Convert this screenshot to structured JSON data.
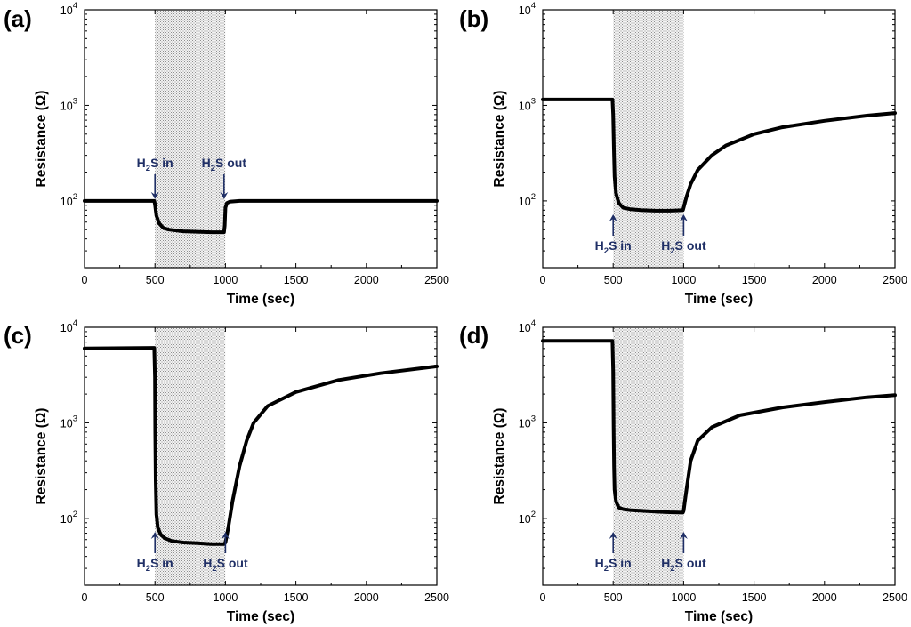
{
  "chart_data": [
    {
      "type": "line",
      "panel": "(a)",
      "xlabel": "Time (sec)",
      "ylabel": "Resistance (Ω)",
      "yscale": "log",
      "xlim": [
        0,
        2500
      ],
      "ylim": [
        20,
        10000
      ],
      "xticks": [
        "0",
        "500",
        "1000",
        "1500",
        "2000",
        "2500"
      ],
      "yticks": [
        {
          "base": "10",
          "exp": "2",
          "value": 100
        },
        {
          "base": "10",
          "exp": "3",
          "value": 1000
        },
        {
          "base": "10",
          "exp": "4",
          "value": 10000
        }
      ],
      "shaded_interval": [
        500,
        1000
      ],
      "annotations": [
        {
          "sub": "2",
          "pre": "H",
          "post": "S in",
          "x": 500,
          "direction": "down"
        },
        {
          "sub": "2",
          "pre": "H",
          "post": "S out",
          "x": 990,
          "direction": "down"
        }
      ],
      "series": [
        {
          "name": "resistance",
          "x": [
            0,
            495,
            500,
            510,
            530,
            560,
            600,
            700,
            800,
            900,
            990,
            995,
            1000,
            1010,
            1030,
            1060,
            1100,
            1300,
            1600,
            2000,
            2500
          ],
          "y": [
            100,
            100,
            92,
            70,
            58,
            52,
            50,
            48,
            47.5,
            47,
            47,
            55,
            85,
            95,
            98,
            99,
            100,
            100,
            100,
            100,
            100
          ]
        }
      ]
    },
    {
      "type": "line",
      "panel": "(b)",
      "xlabel": "Time (sec)",
      "ylabel": "Resistance (Ω)",
      "yscale": "log",
      "xlim": [
        0,
        2500
      ],
      "ylim": [
        20,
        10000
      ],
      "xticks": [
        "0",
        "500",
        "1000",
        "1500",
        "2000",
        "2500"
      ],
      "yticks": [
        {
          "base": "10",
          "exp": "2",
          "value": 100
        },
        {
          "base": "10",
          "exp": "3",
          "value": 1000
        },
        {
          "base": "10",
          "exp": "4",
          "value": 10000
        }
      ],
      "shaded_interval": [
        500,
        1000
      ],
      "annotations": [
        {
          "sub": "2",
          "pre": "H",
          "post": "S in",
          "x": 500,
          "direction": "up"
        },
        {
          "sub": "2",
          "pre": "H",
          "post": "S out",
          "x": 1000,
          "direction": "up"
        }
      ],
      "series": [
        {
          "name": "resistance",
          "x": [
            0,
            495,
            500,
            505,
            510,
            520,
            540,
            570,
            620,
            700,
            800,
            900,
            995,
            1000,
            1020,
            1050,
            1100,
            1200,
            1300,
            1500,
            1700,
            2000,
            2300,
            2500
          ],
          "y": [
            1150,
            1150,
            800,
            350,
            180,
            120,
            95,
            85,
            82,
            80,
            79,
            79,
            80,
            85,
            110,
            150,
            210,
            300,
            380,
            500,
            590,
            690,
            780,
            830
          ]
        }
      ]
    },
    {
      "type": "line",
      "panel": "(c)",
      "xlabel": "Time (sec)",
      "ylabel": "Resistance (Ω)",
      "yscale": "log",
      "xlim": [
        0,
        2500
      ],
      "ylim": [
        20,
        10000
      ],
      "xticks": [
        "0",
        "500",
        "1000",
        "1500",
        "2000",
        "2500"
      ],
      "yticks": [
        {
          "base": "10",
          "exp": "2",
          "value": 100
        },
        {
          "base": "10",
          "exp": "3",
          "value": 1000
        },
        {
          "base": "10",
          "exp": "4",
          "value": 10000
        }
      ],
      "shaded_interval": [
        500,
        1000
      ],
      "annotations": [
        {
          "sub": "2",
          "pre": "H",
          "post": "S in",
          "x": 500,
          "direction": "up"
        },
        {
          "sub": "2",
          "pre": "H",
          "post": "S out",
          "x": 1000,
          "direction": "up"
        }
      ],
      "series": [
        {
          "name": "resistance",
          "x": [
            0,
            495,
            500,
            502,
            505,
            510,
            520,
            540,
            570,
            620,
            700,
            800,
            900,
            990,
            1000,
            1020,
            1050,
            1100,
            1150,
            1200,
            1300,
            1500,
            1800,
            2100,
            2500
          ],
          "y": [
            6000,
            6100,
            3000,
            800,
            250,
            110,
            80,
            68,
            62,
            58,
            56,
            55,
            54,
            54,
            56,
            80,
            150,
            350,
            650,
            1000,
            1500,
            2100,
            2800,
            3300,
            3900
          ]
        }
      ]
    },
    {
      "type": "line",
      "panel": "(d)",
      "xlabel": "Time (sec)",
      "ylabel": "Resistance (Ω)",
      "yscale": "log",
      "xlim": [
        0,
        2500
      ],
      "ylim": [
        20,
        10000
      ],
      "xticks": [
        "0",
        "500",
        "1000",
        "1500",
        "2000",
        "2500"
      ],
      "yticks": [
        {
          "base": "10",
          "exp": "2",
          "value": 100
        },
        {
          "base": "10",
          "exp": "3",
          "value": 1000
        },
        {
          "base": "10",
          "exp": "4",
          "value": 10000
        }
      ],
      "shaded_interval": [
        500,
        1000
      ],
      "annotations": [
        {
          "sub": "2",
          "pre": "H",
          "post": "S in",
          "x": 500,
          "direction": "up"
        },
        {
          "sub": "2",
          "pre": "H",
          "post": "S out",
          "x": 1000,
          "direction": "up"
        }
      ],
      "series": [
        {
          "name": "resistance",
          "x": [
            0,
            495,
            500,
            503,
            506,
            510,
            520,
            540,
            570,
            620,
            700,
            800,
            900,
            995,
            1000,
            1020,
            1050,
            1100,
            1200,
            1400,
            1700,
            2000,
            2300,
            2500
          ],
          "y": [
            7200,
            7200,
            3500,
            900,
            350,
            200,
            150,
            130,
            125,
            122,
            120,
            118,
            116,
            115,
            120,
            200,
            400,
            650,
            900,
            1200,
            1450,
            1650,
            1850,
            1950
          ]
        }
      ]
    }
  ]
}
